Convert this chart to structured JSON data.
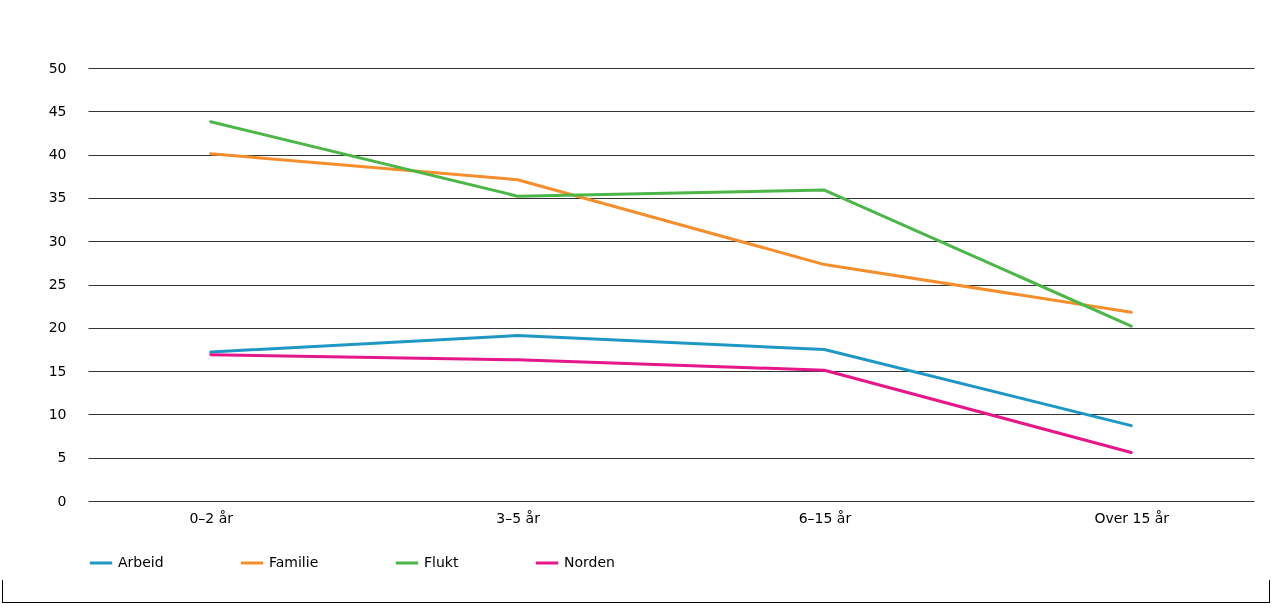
{
  "chart_data": {
    "type": "line",
    "categories": [
      "0–2 år",
      "3–5 år",
      "6–15 år",
      "Over 15 år"
    ],
    "series": [
      {
        "name": "Arbeid",
        "color": "#1f97c4",
        "values": [
          17.2,
          19.1,
          17.5,
          8.7
        ]
      },
      {
        "name": "Familie",
        "color": "#f68e2d",
        "values": [
          40.1,
          37.1,
          27.3,
          21.8
        ]
      },
      {
        "name": "Flukt",
        "color": "#4cb648",
        "values": [
          43.8,
          35.2,
          35.9,
          20.2
        ]
      },
      {
        "name": "Norden",
        "color": "#e5178a",
        "values": [
          16.9,
          16.3,
          15.1,
          5.6
        ]
      }
    ],
    "ylim": [
      0,
      50
    ],
    "yticks": [
      0,
      5,
      10,
      15,
      20,
      25,
      30,
      35,
      40,
      45,
      50
    ],
    "grid": "y",
    "legend": "bottom",
    "marker": "none",
    "line_style": "solid"
  }
}
